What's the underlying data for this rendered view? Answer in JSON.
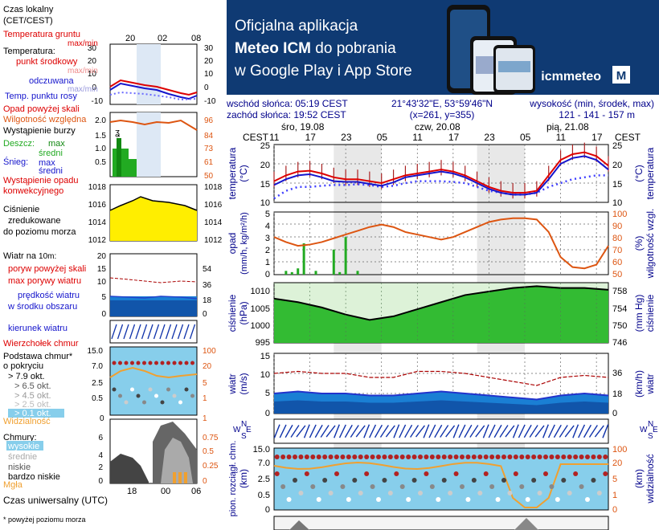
{
  "colors": {
    "temp": "#dd0000",
    "feels": "#1515cc",
    "dew": "#4040ff",
    "humidity": "#dd5511",
    "precip": "#22aa22",
    "pressure": "#ddcc00",
    "pressure_main": "#33bb33",
    "wind": "#1144cc",
    "gust": "#aa0000",
    "sky": "#87ceeb",
    "banner": "#0f3a73",
    "band": "#e7e7e7"
  },
  "legend": {
    "time_local": "Czas lokalny",
    "time_local_tz": "(CET/CEST)",
    "time_ticks": [
      "20",
      "02",
      "08"
    ],
    "soil_temp": "Temperatura gruntu",
    "soil_temp_range": "max/min",
    "temperature": "Temperatura:",
    "mid_point": "punkt środkowy",
    "mid_range": "max/min",
    "feels": "odczuwana",
    "feels_range": "max/min",
    "dew": "Temp. punktu rosy",
    "temp_scale_l": [
      "30",
      "20",
      "10",
      "0",
      "-10"
    ],
    "temp_scale_r": [
      "30",
      "20",
      "10",
      "0",
      "-10"
    ],
    "precip_above": "Opad powyżej skali",
    "humidity": "Wilgotność względna",
    "storm": "Wystąpienie burzy",
    "rain": "Deszcz:",
    "rain_max": "max",
    "rain_mean": "średni",
    "snow": "Śnieg:",
    "snow_max": "max",
    "snow_mean": "średni",
    "convective": "Wystąpienie opadu",
    "convective2": "konwekcyjnego",
    "precip_scale": [
      "2.0",
      "1.5",
      "1.0",
      "0.5"
    ],
    "hum_scale": [
      "96",
      "84",
      "73",
      "61",
      "50"
    ],
    "pressure_lines": [
      "Ciśnienie",
      "zredukowane",
      "do poziomu morza"
    ],
    "press_scale": [
      "1018",
      "1016",
      "1014",
      "1012"
    ],
    "wind_title": "Wiatr na",
    "wind_title_level": "10m:",
    "gust_above": "poryw powyżej skali",
    "gust_max": "max porywy wiatru",
    "wind_mean": "prędkość wiatru",
    "wind_mean2": "w środku obszaru",
    "wind_scale_l": [
      "20",
      "15",
      "10",
      "5",
      "0"
    ],
    "wind_scale_r": [
      "54",
      "36",
      "18",
      "0"
    ],
    "wind_dir": "kierunek wiatru",
    "cloud_top": "Wierzchołek chmur",
    "cloud_base": "Podstawa chmur*",
    "cloud_base2": "o pokryciu",
    "okt": [
      "> 7.9 okt.",
      "> 6.5 okt.",
      "> 4.5 okt.",
      "> 2.5 okt.",
      "> 0.1 okt."
    ],
    "cb_scale_l": [
      "15.0",
      "7.0",
      "2.5",
      "0.5"
    ],
    "cb_scale_r": [
      "100",
      "20",
      "5",
      "1"
    ],
    "visibility": "Widzialność",
    "vis_scale_l": "0",
    "vis_scale_r": "1",
    "clouds": "Chmury:",
    "cloud_levels": [
      "wysokie",
      "średnie",
      "niskie",
      "bardzo niskie"
    ],
    "fog": "Mgła",
    "cl_scale_l": [
      "8",
      "6",
      "4",
      "2",
      "0"
    ],
    "cl_scale_r": [
      "1",
      "0.75",
      "0.5",
      "0.25",
      "0"
    ],
    "utc": "Czas uniwersalny (UTC)",
    "utc_ticks": [
      "18",
      "00",
      "06"
    ],
    "footnote": "* powyżej poziomu morza"
  },
  "banner": {
    "line1": "Oficjalna aplikacja",
    "line2_bold": "Meteo ICM",
    "line2_rest": "do pobrania",
    "line3": "w Google Play i App Store",
    "logo": "icmmeteo",
    "badge": "M"
  },
  "info": {
    "sunrise": "wschód słońca: 05:19 CEST",
    "sunset": "zachód słońca: 19:52 CEST",
    "coords": "21°43'32\"E, 53°59'46\"N",
    "grid": "(x=261, y=355)",
    "height_label": "wysokość (min, środek, max)",
    "height_values": "121 - 141 - 157 m"
  },
  "timeline": {
    "tz": "CEST",
    "days": [
      "śro, 19.08",
      "czw, 20.08",
      "pią, 21.08"
    ],
    "hours": [
      "11",
      "17",
      "23",
      "05",
      "11",
      "17",
      "23",
      "05",
      "11",
      "17"
    ]
  },
  "panels": {
    "temp": {
      "label_l": "temperatura",
      "unit_l": "(°C)",
      "label_r": "temperatura",
      "unit_r": "(°C)",
      "scale": [
        "25",
        "20",
        "15",
        "10"
      ]
    },
    "precip": {
      "label_l": "opad",
      "unit_l": "(mm/h, kg/m²/h)",
      "label_r": "wilgotność wzgl.",
      "unit_r": "(%)",
      "scale_l": [
        "5",
        "4",
        "3",
        "2",
        "1",
        "0"
      ],
      "scale_r": [
        "100",
        "90",
        "80",
        "70",
        "60",
        "50"
      ]
    },
    "pressure": {
      "label_l": "ciśnienie",
      "unit_l": "(hPa)",
      "label_r": "ciśnienie",
      "unit_r": "(mm Hg)",
      "scale_l": [
        "1010",
        "1005",
        "1000",
        "995"
      ],
      "scale_r": [
        "758",
        "754",
        "750",
        "746"
      ]
    },
    "wind": {
      "label_l": "wiatr",
      "unit_l": "(m/s)",
      "label_r": "wiatr",
      "unit_r": "(km/h)",
      "scale_l": [
        "15",
        "10",
        "5",
        "0"
      ],
      "scale_r": [
        "36",
        "18",
        "0"
      ]
    },
    "wdir": {
      "compass_n": "N",
      "compass_s": "S",
      "compass_w": "W",
      "compass_e": "E"
    },
    "clouds": {
      "label_l": "pion. rozciągł. chm.",
      "unit_l": "(km)",
      "label_r": "widzialność",
      "unit_r": "(km)",
      "scale_l": [
        "15.0",
        "7.0",
        "2.5",
        "0.5",
        "0"
      ],
      "scale_r": [
        "100",
        "20",
        "5",
        "1",
        "0"
      ]
    }
  },
  "chart_data": [
    {
      "type": "line",
      "title": "temperatura",
      "ylabel": "(°C)",
      "x_hours_from_start": [
        0,
        2,
        4,
        6,
        8,
        10,
        12,
        14,
        16,
        18,
        20,
        22,
        24,
        26,
        28,
        30,
        32,
        34,
        36,
        38,
        40,
        42,
        44,
        46,
        48,
        50,
        52,
        54,
        56
      ],
      "ylim": [
        10,
        25
      ],
      "series": [
        {
          "name": "punkt środkowy",
          "values": [
            15.5,
            17,
            18,
            18.2,
            17.5,
            16.5,
            16,
            16,
            15.5,
            15,
            16,
            17,
            17.5,
            18,
            18.5,
            18,
            17,
            15.5,
            14,
            13,
            12.5,
            12.5,
            13,
            17,
            21,
            22.5,
            23,
            22,
            19.5
          ]
        },
        {
          "name": "odczuwana",
          "values": [
            14.5,
            16,
            17,
            17.3,
            16.5,
            15.5,
            15.3,
            15.3,
            14.8,
            14.3,
            15.2,
            16.5,
            17,
            17.5,
            18,
            17.5,
            16.5,
            15,
            13.5,
            12.5,
            12,
            12,
            12.5,
            16,
            20,
            21.5,
            22,
            21,
            18.5
          ]
        },
        {
          "name": "Temp. punktu rosy",
          "values": [
            11,
            13,
            14,
            14,
            14.3,
            14.5,
            14.5,
            14.7,
            14.5,
            14,
            14.3,
            15,
            15.5,
            15.5,
            15.5,
            15.3,
            15,
            14,
            13,
            12.5,
            12,
            12,
            12.5,
            14,
            15,
            16,
            16.5,
            17,
            17
          ]
        }
      ]
    },
    {
      "type": "line",
      "title": "wilgotność wzgl.",
      "ylabel": "(%)",
      "x_hours_from_start": [
        0,
        2,
        4,
        6,
        8,
        10,
        12,
        14,
        16,
        18,
        20,
        22,
        24,
        26,
        28,
        30,
        32,
        34,
        36,
        38,
        40,
        42,
        44,
        46,
        48,
        50,
        52,
        54,
        56
      ],
      "ylim": [
        50,
        100
      ],
      "series": [
        {
          "name": "Wilgotność względna",
          "values": [
            80,
            76,
            73,
            74,
            76,
            79,
            82,
            85,
            88,
            90,
            88,
            84,
            82,
            80,
            78,
            80,
            84,
            88,
            92,
            94,
            95,
            95,
            94,
            84,
            64,
            56,
            55,
            58,
            73
          ]
        }
      ]
    },
    {
      "type": "bar",
      "title": "opad",
      "ylabel": "(mm/h, kg/m²/h)",
      "x_hours_from_start": [
        2,
        3,
        4,
        5,
        7,
        10,
        11,
        12,
        14
      ],
      "ylim": [
        0,
        5
      ],
      "values": [
        0.3,
        0.2,
        0.5,
        2.5,
        0.3,
        2.0,
        0.2,
        3.0,
        0.3
      ]
    },
    {
      "type": "area",
      "title": "ciśnienie",
      "ylabel": "(hPa)",
      "x_hours_from_start": [
        0,
        4,
        8,
        12,
        16,
        20,
        24,
        28,
        32,
        36,
        40,
        44,
        48,
        52,
        56
      ],
      "ylim": [
        995,
        1012
      ],
      "series": [
        {
          "name": "Ciśnienie",
          "values": [
            1007.5,
            1006.5,
            1005,
            1003,
            1001.5,
            1002.5,
            1004.5,
            1006.5,
            1008.5,
            1009.5,
            1010.5,
            1011,
            1010.5,
            1010.5,
            1010
          ]
        }
      ]
    },
    {
      "type": "line",
      "title": "wiatr",
      "ylabel": "(m/s)",
      "x_hours_from_start": [
        0,
        4,
        8,
        12,
        16,
        20,
        24,
        28,
        32,
        36,
        40,
        44,
        48,
        52,
        56
      ],
      "ylim": [
        0,
        15
      ],
      "series": [
        {
          "name": "prędkość wiatru",
          "values": [
            5,
            5.5,
            5,
            5,
            4.5,
            4.5,
            5,
            5.5,
            5,
            4.5,
            4,
            3.5,
            4.5,
            5,
            4.5
          ]
        },
        {
          "name": "max porywy wiatru",
          "values": [
            10,
            10.5,
            10,
            10,
            9,
            9,
            10.5,
            10.5,
            10,
            9,
            8,
            7,
            9,
            9.5,
            9
          ]
        }
      ]
    }
  ]
}
